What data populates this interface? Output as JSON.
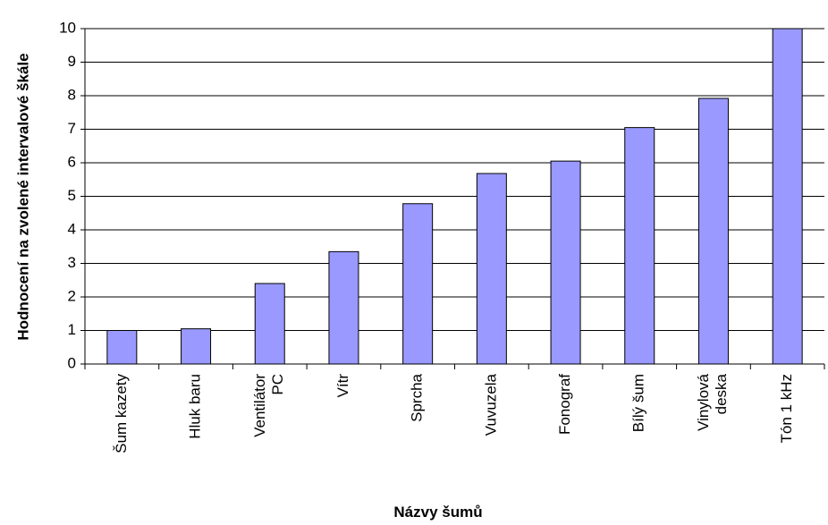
{
  "chart_data": {
    "type": "bar",
    "xlabel": "Názvy šumů",
    "ylabel": "Hodnocení na zvolené intervalové škále",
    "categories": [
      "Šum kazety",
      "Hluk baru",
      "Ventilátor PC",
      "Vítr",
      "Sprcha",
      "Vuvuzela",
      "Fonograf",
      "Bílý šum",
      "Vinylová deska",
      "Tón 1 kHz"
    ],
    "values": [
      1.0,
      1.05,
      2.4,
      3.35,
      4.78,
      5.68,
      6.05,
      7.05,
      7.92,
      10.0
    ],
    "color": "#9999ff",
    "ylim": [
      0,
      10
    ],
    "yticks": [
      0,
      1,
      2,
      3,
      4,
      5,
      6,
      7,
      8,
      9,
      10
    ],
    "grid": true
  }
}
